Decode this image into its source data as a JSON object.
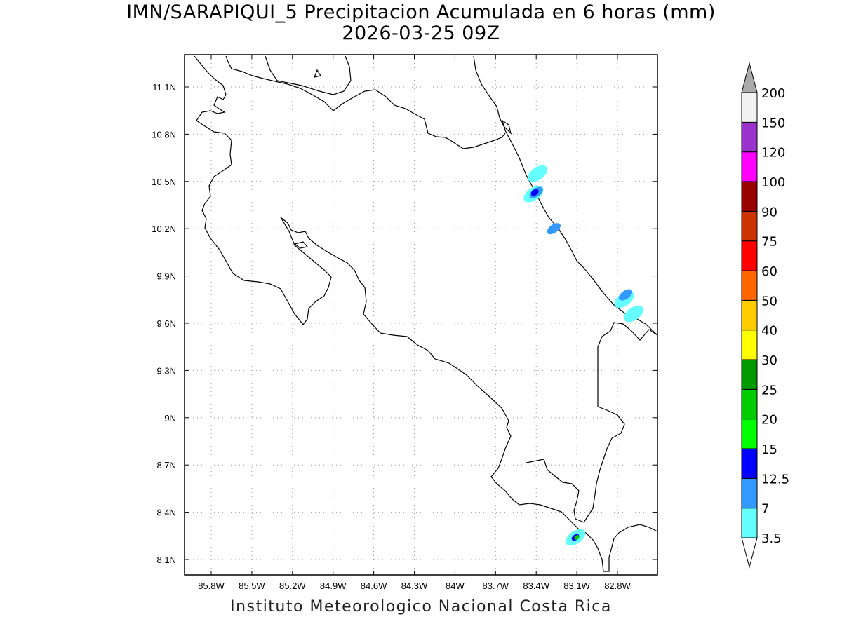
{
  "header": {
    "title": "IMN/SARAPIQUI_5 Precipitacion Acumulada en 6 horas (mm)",
    "date": "2026-03-25 09Z"
  },
  "footer": {
    "credit": "Instituto Meteorologico Nacional Costa Rica"
  },
  "map": {
    "lon_range": [
      -86.0,
      -83.0
    ],
    "lat_range": [
      8.0,
      11.3
    ],
    "lon_ticks": [
      {
        "value": -85.8,
        "label": "85.8W"
      },
      {
        "value": -85.5,
        "label": "85.5W"
      },
      {
        "value": -85.2,
        "label": "85.2W"
      },
      {
        "value": -84.9,
        "label": "84.9W"
      },
      {
        "value": -84.6,
        "label": "84.6W"
      },
      {
        "value": -84.3,
        "label": "84.3W"
      },
      {
        "value": -84.0,
        "label": "84W"
      },
      {
        "value": -83.7,
        "label": "83.7W"
      },
      {
        "value": -83.4,
        "label": "83.4W"
      },
      {
        "value": -83.1,
        "label": "83.1W"
      },
      {
        "value": -82.8,
        "label": "82.8W"
      }
    ],
    "lat_ticks": [
      {
        "value": 11.1,
        "label": "11.1N"
      },
      {
        "value": 10.8,
        "label": "10.8N"
      },
      {
        "value": 10.5,
        "label": "10.5N"
      },
      {
        "value": 10.2,
        "label": "10.2N"
      },
      {
        "value": 9.9,
        "label": "9.9N"
      },
      {
        "value": 9.6,
        "label": "9.6N"
      },
      {
        "value": 9.3,
        "label": "9.3N"
      },
      {
        "value": 9.0,
        "label": "9N"
      },
      {
        "value": 8.7,
        "label": "8.7N"
      },
      {
        "value": 8.4,
        "label": "8.4N"
      },
      {
        "value": 8.1,
        "label": "8.1N"
      }
    ],
    "grid": true,
    "precip_cells": [
      {
        "lon": -83.42,
        "lat": 10.42,
        "level": 3.5
      },
      {
        "lon": -83.4,
        "lat": 10.43,
        "level": 7
      },
      {
        "lon": -83.41,
        "lat": 10.43,
        "level": 12.5
      },
      {
        "lon": -83.39,
        "lat": 10.55,
        "level": 3.5
      },
      {
        "lon": -83.27,
        "lat": 10.2,
        "level": 7
      },
      {
        "lon": -82.75,
        "lat": 9.75,
        "level": 3.5
      },
      {
        "lon": -82.74,
        "lat": 9.78,
        "level": 7
      },
      {
        "lon": -82.68,
        "lat": 9.66,
        "level": 3.5
      },
      {
        "lon": -83.11,
        "lat": 8.24,
        "level": 3.5
      },
      {
        "lon": -83.11,
        "lat": 8.24,
        "level": 12.5
      },
      {
        "lon": -83.1,
        "lat": 8.24,
        "level": 20
      }
    ]
  },
  "colorbar": {
    "levels": [
      {
        "label": "3.5",
        "color": "#66ffff"
      },
      {
        "label": "7",
        "color": "#3399ff"
      },
      {
        "label": "12.5",
        "color": "#0000ff"
      },
      {
        "label": "15",
        "color": "#00ff00"
      },
      {
        "label": "20",
        "color": "#00cc00"
      },
      {
        "label": "25",
        "color": "#009900"
      },
      {
        "label": "30",
        "color": "#ffff00"
      },
      {
        "label": "40",
        "color": "#ffcc00"
      },
      {
        "label": "50",
        "color": "#ff6600"
      },
      {
        "label": "60",
        "color": "#ff0000"
      },
      {
        "label": "75",
        "color": "#cc3300"
      },
      {
        "label": "90",
        "color": "#990000"
      },
      {
        "label": "100",
        "color": "#ff00ff"
      },
      {
        "label": "120",
        "color": "#9933cc"
      },
      {
        "label": "150",
        "color": "#f2f2f2"
      },
      {
        "label": "200",
        "color": "#aaaaaa"
      }
    ]
  }
}
